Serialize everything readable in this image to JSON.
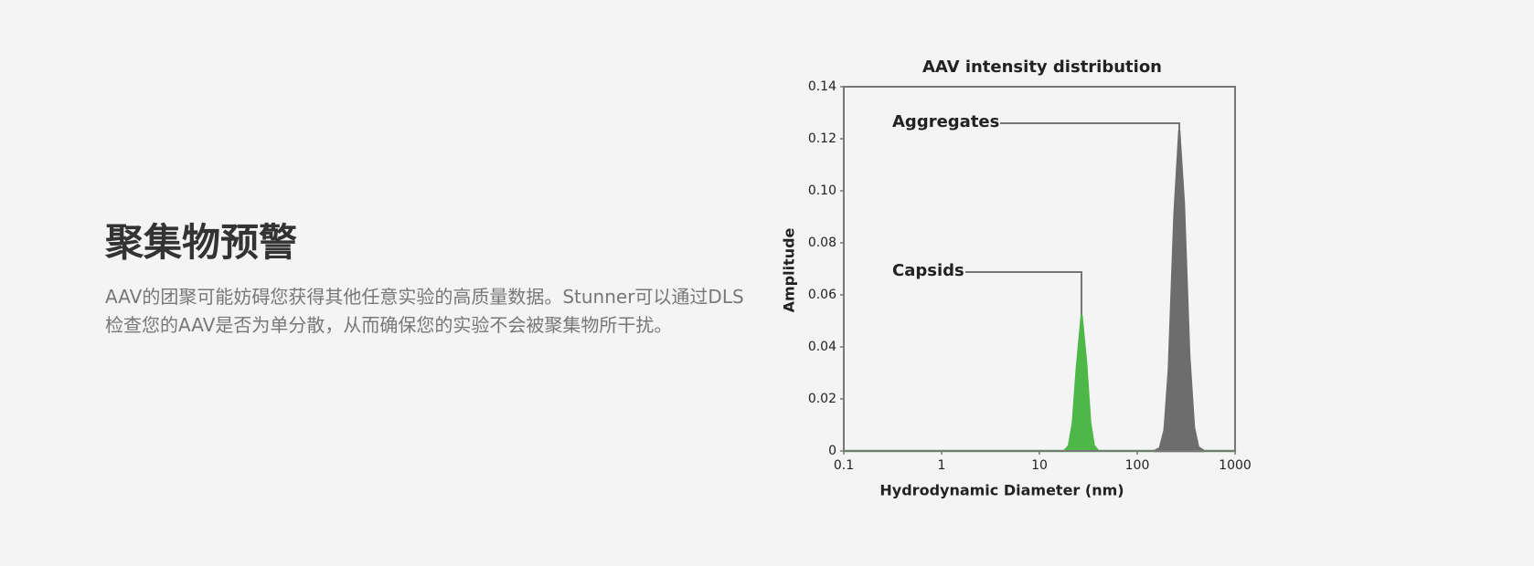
{
  "heading": "聚集物预警",
  "paragraph": "AAV的团聚可能妨碍您获得其他任意实验的高质量数据。Stunner可以通过DLS检查您的AAV是否为单分散，从而确保您的实验不会被聚集物所干扰。",
  "chart_data": {
    "type": "area",
    "title": "AAV intensity distribution",
    "x_label": "Hydrodynamic Diameter (nm)",
    "y_label": "Amplitude",
    "x_scale": "log",
    "xlim": [
      0.1,
      1000
    ],
    "xticks": [
      0.1,
      1,
      10,
      100,
      1000
    ],
    "ylim": [
      0,
      0.14
    ],
    "yticks": [
      0,
      0.02,
      0.04,
      0.06,
      0.08,
      {
        "value": 0.1,
        "label": "0.10"
      },
      0.12,
      0.14
    ],
    "series": [
      {
        "name": "Capsids",
        "color": "#4db848",
        "x": [
          0.1,
          18,
          20,
          22,
          24,
          27,
          30,
          33,
          36,
          40,
          1000
        ],
        "values": [
          0,
          0,
          0.002,
          0.011,
          0.031,
          0.052,
          0.034,
          0.011,
          0.002,
          0,
          0
        ]
      },
      {
        "name": "Aggregates",
        "color": "#6d6d6d",
        "x": [
          150,
          170,
          190,
          210,
          240,
          269,
          300,
          340,
          380,
          420,
          480
        ],
        "values": [
          0,
          0.001,
          0.008,
          0.031,
          0.091,
          0.123,
          0.095,
          0.037,
          0.009,
          0.0015,
          0
        ]
      }
    ]
  }
}
